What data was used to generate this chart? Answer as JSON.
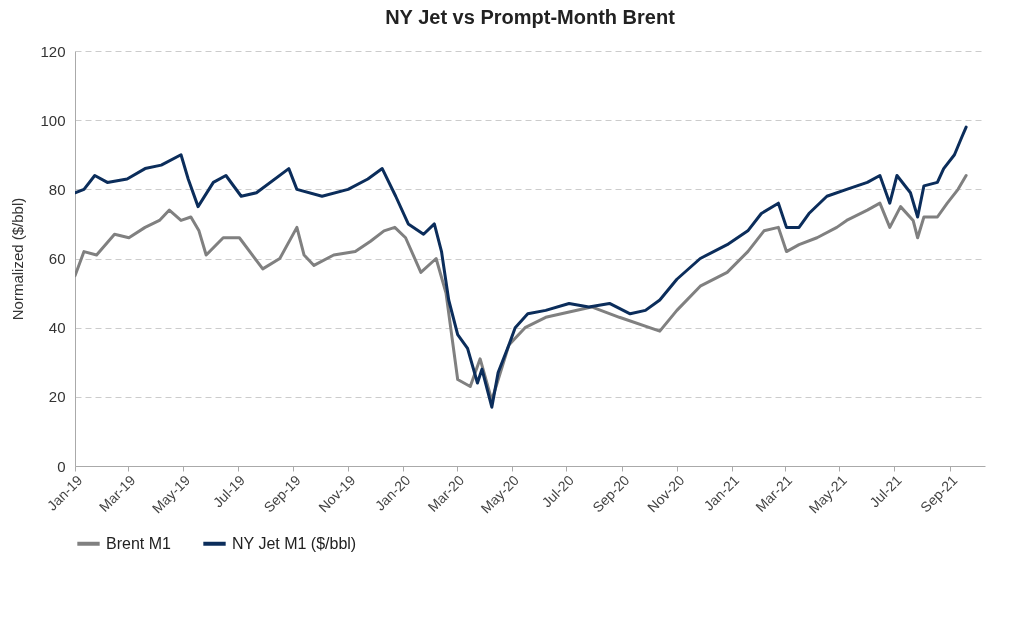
{
  "chart_data": {
    "type": "line",
    "title": "NY Jet vs Prompt-Month Brent",
    "ylabel": "Normalized ($/bbl)",
    "xlim": [
      "2019-01-01",
      "2021-10-10"
    ],
    "xticks": [
      {
        "value": "2019-01-01",
        "label": "Jan-19"
      },
      {
        "value": "2019-03-01",
        "label": "Mar-19"
      },
      {
        "value": "2019-05-01",
        "label": "May-19"
      },
      {
        "value": "2019-07-01",
        "label": "Jul-19"
      },
      {
        "value": "2019-09-01",
        "label": "Sep-19"
      },
      {
        "value": "2019-11-01",
        "label": "Nov-19"
      },
      {
        "value": "2020-01-01",
        "label": "Jan-20"
      },
      {
        "value": "2020-03-01",
        "label": "Mar-20"
      },
      {
        "value": "2020-05-01",
        "label": "May-20"
      },
      {
        "value": "2020-07-01",
        "label": "Jul-20"
      },
      {
        "value": "2020-09-01",
        "label": "Sep-20"
      },
      {
        "value": "2020-11-01",
        "label": "Nov-20"
      },
      {
        "value": "2021-01-01",
        "label": "Jan-21"
      },
      {
        "value": "2021-03-01",
        "label": "Mar-21"
      },
      {
        "value": "2021-05-01",
        "label": "May-21"
      },
      {
        "value": "2021-07-01",
        "label": "Jul-21"
      },
      {
        "value": "2021-09-01",
        "label": "Sep-21"
      }
    ],
    "ylim": [
      0,
      120
    ],
    "yticks": [
      0,
      20,
      40,
      60,
      80,
      100,
      120
    ],
    "grid": "y",
    "legend": "bottom",
    "line_style": "solid",
    "series": [
      {
        "name": "Brent M1",
        "color": "#808080",
        "x": [
          "2019-01-01",
          "2019-01-11",
          "2019-01-25",
          "2019-02-14",
          "2019-03-02",
          "2019-03-20",
          "2019-04-05",
          "2019-04-16",
          "2019-04-29",
          "2019-05-10",
          "2019-05-19",
          "2019-05-27",
          "2019-06-15",
          "2019-07-03",
          "2019-07-29",
          "2019-08-17",
          "2019-09-05",
          "2019-09-13",
          "2019-09-24",
          "2019-10-16",
          "2019-11-09",
          "2019-11-26",
          "2019-12-11",
          "2019-12-23",
          "2020-01-04",
          "2020-01-21",
          "2020-02-07",
          "2020-02-18",
          "2020-03-02",
          "2020-03-16",
          "2020-03-27",
          "2020-04-09",
          "2020-04-28",
          "2020-05-16",
          "2020-06-08",
          "2020-07-29",
          "2020-08-29",
          "2020-10-13",
          "2020-11-01",
          "2020-11-27",
          "2020-12-27",
          "2021-01-19",
          "2021-02-06",
          "2021-02-22",
          "2021-03-03",
          "2021-03-17",
          "2021-04-06",
          "2021-04-28",
          "2021-05-09",
          "2021-06-01",
          "2021-06-15",
          "2021-06-26",
          "2021-07-08",
          "2021-07-22",
          "2021-07-27",
          "2021-08-03",
          "2021-08-18",
          "2021-08-29",
          "2021-09-10",
          "2021-09-19"
        ],
        "values": [
          55,
          62,
          61,
          67,
          66,
          69,
          71,
          74,
          71,
          72,
          68,
          61,
          66,
          66,
          57,
          60,
          69,
          61,
          58,
          61,
          62,
          65,
          68,
          69,
          66,
          56,
          60,
          50,
          25,
          23,
          31,
          19,
          35,
          40,
          43,
          46,
          43,
          39,
          45,
          52,
          56,
          62,
          68,
          69,
          62,
          64,
          66,
          69,
          71,
          74,
          76,
          69,
          75,
          71,
          66,
          72,
          72,
          76,
          80,
          84
        ]
      },
      {
        "name": "NY Jet M1 ($/bbl)",
        "color": "#0b2d5b",
        "x": [
          "2019-01-01",
          "2019-01-11",
          "2019-01-23",
          "2019-02-06",
          "2019-02-28",
          "2019-03-20",
          "2019-04-07",
          "2019-04-29",
          "2019-05-07",
          "2019-05-18",
          "2019-06-04",
          "2019-06-18",
          "2019-07-05",
          "2019-07-22",
          "2019-08-27",
          "2019-09-05",
          "2019-10-03",
          "2019-11-01",
          "2019-11-23",
          "2019-12-09",
          "2019-12-24",
          "2020-01-07",
          "2020-01-24",
          "2020-02-05",
          "2020-02-13",
          "2020-02-21",
          "2020-03-02",
          "2020-03-13",
          "2020-03-24",
          "2020-03-29",
          "2020-04-09",
          "2020-04-16",
          "2020-04-28",
          "2020-05-05",
          "2020-05-19",
          "2020-06-08",
          "2020-07-04",
          "2020-07-26",
          "2020-08-18",
          "2020-09-10",
          "2020-09-27",
          "2020-10-13",
          "2020-11-01",
          "2020-11-27",
          "2020-12-27",
          "2021-01-19",
          "2021-02-03",
          "2021-02-22",
          "2021-03-03",
          "2021-03-17",
          "2021-03-28",
          "2021-04-17",
          "2021-05-09",
          "2021-06-01",
          "2021-06-15",
          "2021-06-26",
          "2021-07-04",
          "2021-07-19",
          "2021-07-27",
          "2021-08-03",
          "2021-08-18",
          "2021-08-25",
          "2021-09-06",
          "2021-09-14",
          "2021-09-19"
        ],
        "values": [
          79,
          80,
          84,
          82,
          83,
          86,
          87,
          90,
          83,
          75,
          82,
          84,
          78,
          79,
          86,
          80,
          78,
          80,
          83,
          86,
          78,
          70,
          67,
          70,
          62,
          48,
          38,
          34,
          24,
          28,
          17,
          27,
          35,
          40,
          44,
          45,
          47,
          46,
          47,
          44,
          45,
          48,
          54,
          60,
          64,
          68,
          73,
          76,
          69,
          69,
          73,
          78,
          80,
          82,
          84,
          76,
          84,
          79,
          72,
          81,
          82,
          86,
          90,
          95,
          98
        ]
      }
    ]
  }
}
